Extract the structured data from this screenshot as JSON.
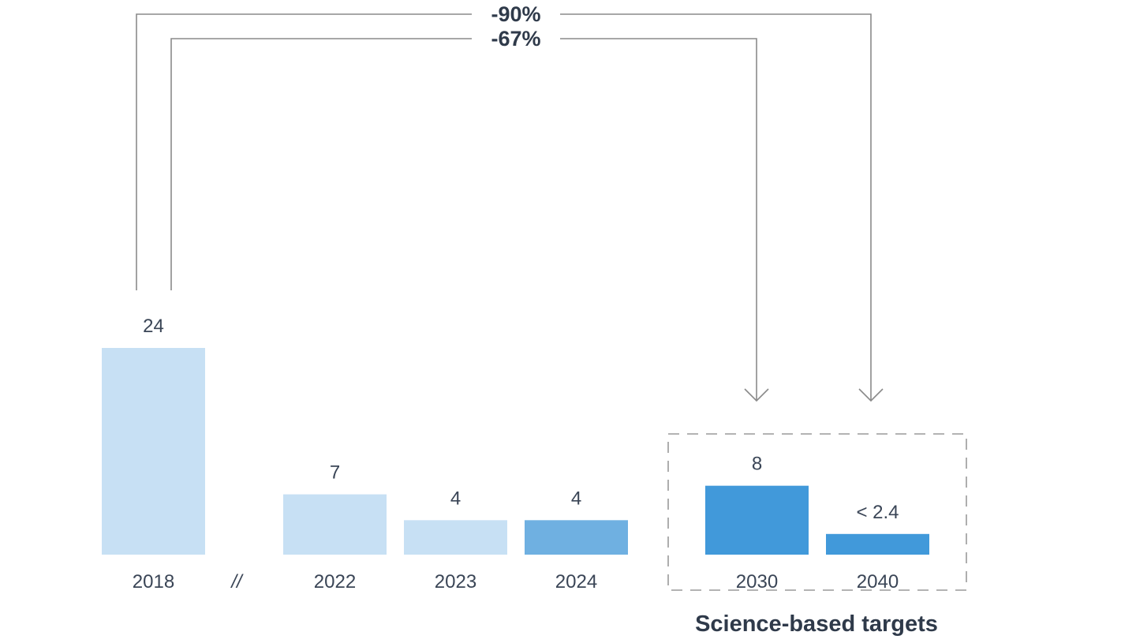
{
  "chart_data": {
    "type": "bar",
    "categories": [
      "2018",
      "2022",
      "2023",
      "2024",
      "2030",
      "2040"
    ],
    "values": [
      24,
      7,
      4,
      4,
      8,
      2.4
    ],
    "value_labels": [
      "24",
      "7",
      "4",
      "4",
      "8",
      "< 2.4"
    ],
    "bar_colors": [
      "#c7e0f4",
      "#c7e0f4",
      "#c7e0f4",
      "#6fb0e1",
      "#4199da",
      "#4199da"
    ],
    "axis_break_label": "//",
    "target_group": {
      "label": "Science-based targets",
      "categories": [
        "2030",
        "2040"
      ]
    },
    "annotations": [
      {
        "label": "-90%",
        "from": "2018",
        "to": "2040"
      },
      {
        "label": "-67%",
        "from": "2018",
        "to": "2030"
      }
    ],
    "ylim": [
      0,
      24
    ],
    "grid": false,
    "title": "",
    "xlabel": "",
    "ylabel": ""
  },
  "colors": {
    "text": "#3a4556",
    "annotation_text": "#2f3a4a",
    "line": "#8a8a8a",
    "dashed_box": "#9a9a9a"
  }
}
